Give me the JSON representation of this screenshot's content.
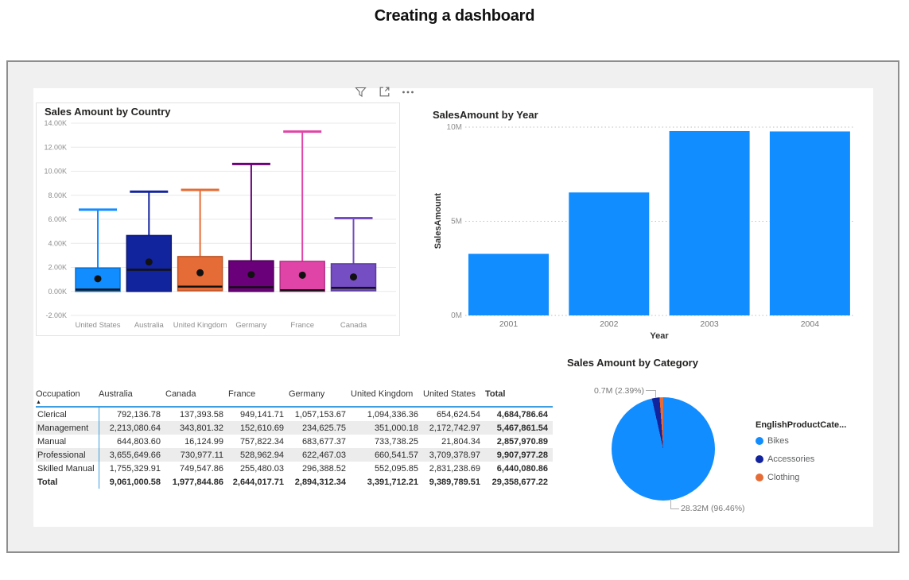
{
  "page": {
    "title": "Creating a dashboard"
  },
  "visual_header": {
    "icons": [
      "filter",
      "focus-mode",
      "more-options"
    ]
  },
  "chart_data": [
    {
      "type": "boxplot",
      "title": "Sales Amount by Country",
      "unit": "K",
      "ylim": [
        -2,
        14
      ],
      "y_tick_values": [
        14,
        12,
        10,
        8,
        6,
        4,
        2,
        0,
        -2
      ],
      "y_tick_labels": [
        "14.00K",
        "12.00K",
        "10.00K",
        "8.00K",
        "6.00K",
        "4.00K",
        "2.00K",
        "0.00K",
        "-2.00K"
      ],
      "series": [
        {
          "name": "United States",
          "color": "#118DFF",
          "border": "#0B6FCC",
          "q1": 0,
          "q3": 1.95,
          "median": 0.15,
          "mean": 1.05,
          "whisker_high": 6.8
        },
        {
          "name": "Australia",
          "color": "#12239E",
          "border": "#0D1872",
          "q1": 0,
          "q3": 4.65,
          "median": 1.8,
          "mean": 2.45,
          "whisker_high": 8.3
        },
        {
          "name": "United Kingdom",
          "color": "#E66C37",
          "border": "#BC5325",
          "q1": 0.05,
          "q3": 2.9,
          "median": 0.4,
          "mean": 1.55,
          "whisker_high": 8.45
        },
        {
          "name": "Germany",
          "color": "#6B007B",
          "border": "#4A0056",
          "q1": 0,
          "q3": 2.55,
          "median": 0.35,
          "mean": 1.4,
          "whisker_high": 10.6
        },
        {
          "name": "France",
          "color": "#E044A7",
          "border": "#B43287",
          "q1": 0,
          "q3": 2.5,
          "median": 0.1,
          "mean": 1.35,
          "whisker_high": 13.3
        },
        {
          "name": "Canada",
          "color": "#744EC2",
          "border": "#5B3A9E",
          "q1": 0.05,
          "q3": 2.3,
          "median": 0.3,
          "mean": 1.2,
          "whisker_high": 6.1
        }
      ]
    },
    {
      "type": "bar",
      "title": "SalesAmount by Year",
      "xlabel": "Year",
      "ylabel": "SalesAmount",
      "categories": [
        "2001",
        "2002",
        "2003",
        "2004"
      ],
      "values": [
        3.27,
        6.53,
        9.79,
        9.77
      ],
      "unit": "M",
      "ylim": [
        0,
        10
      ],
      "y_tick_values": [
        0,
        5,
        10
      ],
      "y_tick_labels": [
        "0M",
        "5M",
        "10M"
      ],
      "bar_color": "#118DFF",
      "grid": "dotted",
      "legend": "none"
    },
    {
      "type": "table",
      "columns": [
        "Occupation",
        "Australia",
        "Canada",
        "France",
        "Germany",
        "United Kingdom",
        "United States",
        "Total"
      ],
      "sort_column": "Occupation",
      "sort_icon": "▲",
      "rows": [
        [
          "Clerical",
          "792,136.78",
          "137,393.58",
          "949,141.71",
          "1,057,153.67",
          "1,094,336.36",
          "654,624.54",
          "4,684,786.64"
        ],
        [
          "Management",
          "2,213,080.64",
          "343,801.32",
          "152,610.69",
          "234,625.75",
          "351,000.18",
          "2,172,742.97",
          "5,467,861.54"
        ],
        [
          "Manual",
          "644,803.60",
          "16,124.99",
          "757,822.34",
          "683,677.37",
          "733,738.25",
          "21,804.34",
          "2,857,970.89"
        ],
        [
          "Professional",
          "3,655,649.66",
          "730,977.11",
          "528,962.94",
          "622,467.03",
          "660,541.57",
          "3,709,378.97",
          "9,907,977.28"
        ],
        [
          "Skilled Manual",
          "1,755,329.91",
          "749,547.86",
          "255,480.03",
          "296,388.52",
          "552,095.85",
          "2,831,238.69",
          "6,440,080.86"
        ]
      ],
      "total_row": [
        "Total",
        "9,061,000.58",
        "1,977,844.86",
        "2,644,017.71",
        "2,894,312.34",
        "3,391,712.21",
        "9,389,789.51",
        "29,358,677.22"
      ]
    },
    {
      "type": "pie",
      "title": "Sales Amount by Category",
      "legend_title": "EnglishProductCate...",
      "slices": [
        {
          "label": "Bikes",
          "pct": 96.46,
          "color": "#118DFF",
          "callout": "28.32M (96.46%)"
        },
        {
          "label": "Accessories",
          "pct": 2.39,
          "color": "#12239E",
          "callout": "0.7M (2.39%)"
        },
        {
          "label": "Clothing",
          "pct": 1.15,
          "color": "#E66C37",
          "callout": ""
        }
      ]
    }
  ]
}
